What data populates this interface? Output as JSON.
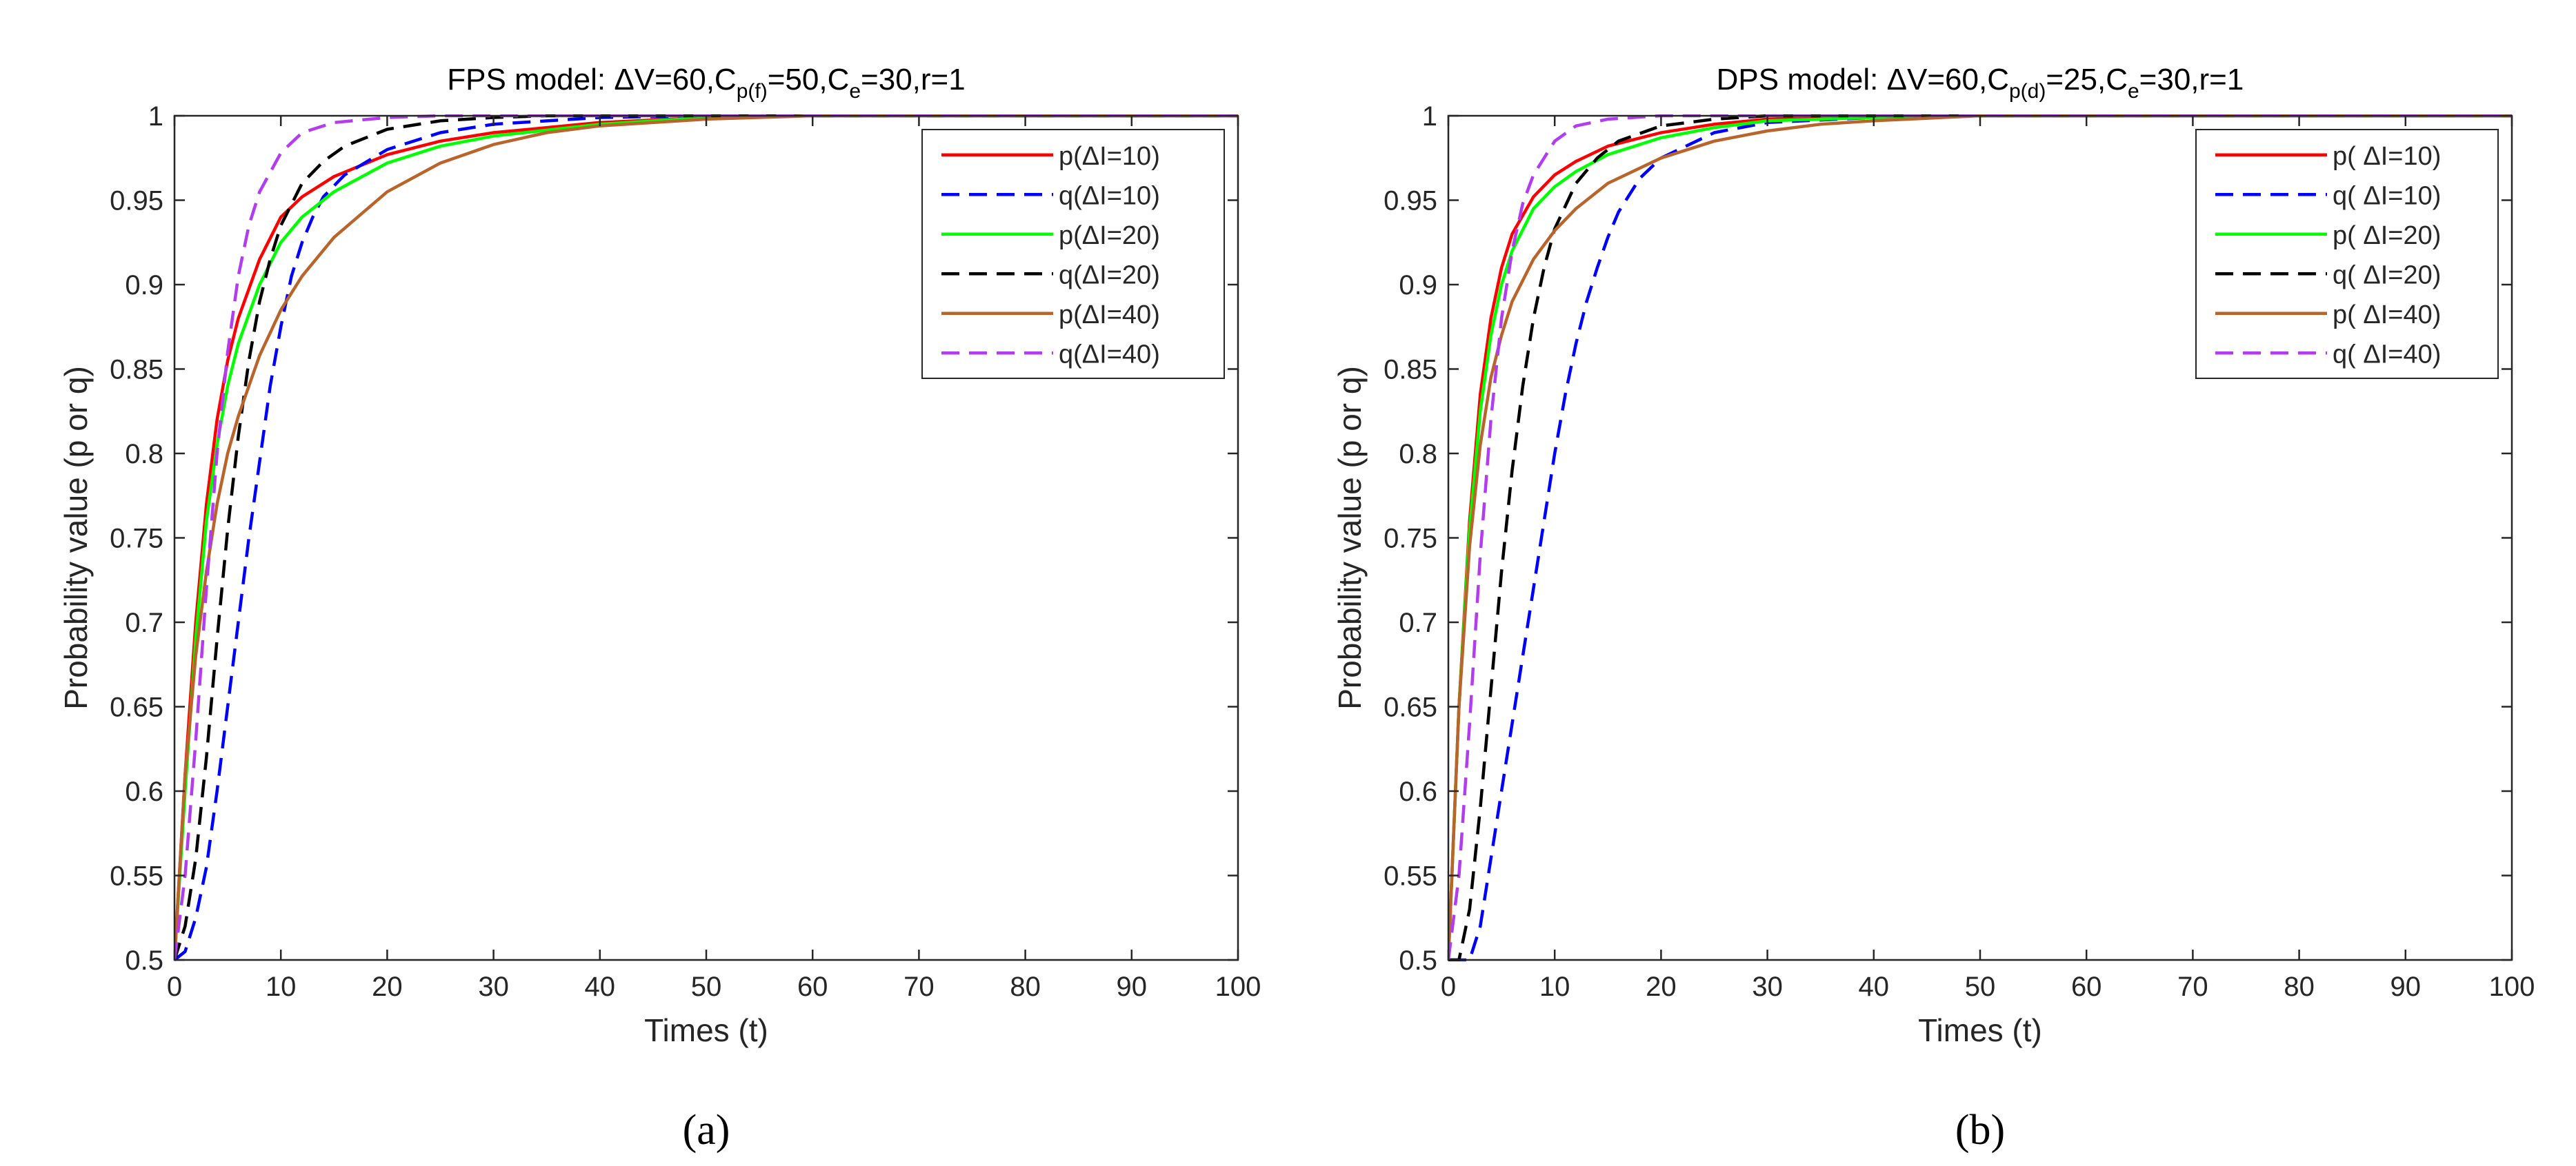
{
  "chart_data": [
    {
      "type": "line",
      "panel_label": "(a)",
      "title_prefix": "FPS model: ΔV=60,C",
      "title_sub1": "p(f)",
      "title_mid": "=50,C",
      "title_sub2": "e",
      "title_suffix": "=30,r=1",
      "xlabel": "Times (t)",
      "ylabel": "Probability value (p or q)",
      "xlim": [
        0,
        100
      ],
      "ylim": [
        0.5,
        1
      ],
      "xticks": [
        "0",
        "10",
        "20",
        "30",
        "40",
        "50",
        "60",
        "70",
        "80",
        "90",
        "100"
      ],
      "yticks": [
        "0.5",
        "0.55",
        "0.6",
        "0.65",
        "0.7",
        "0.75",
        "0.8",
        "0.85",
        "0.9",
        "0.95",
        "1"
      ],
      "legend_position": "top-right",
      "series": [
        {
          "name": "p(ΔI=10)",
          "color": "#ff0000",
          "dash": "solid",
          "x": [
            0,
            1,
            2,
            3,
            4,
            5,
            6,
            8,
            10,
            12,
            15,
            20,
            25,
            30,
            40,
            50,
            60,
            100
          ],
          "y": [
            0.5,
            0.61,
            0.7,
            0.77,
            0.82,
            0.855,
            0.88,
            0.915,
            0.94,
            0.952,
            0.964,
            0.977,
            0.985,
            0.99,
            0.996,
            0.999,
            1.0,
            1.0
          ]
        },
        {
          "name": "q(ΔI=10)",
          "color": "#0000ff",
          "dash": "dashed",
          "x": [
            0,
            1,
            2,
            3,
            4,
            5,
            6,
            7,
            8,
            9,
            10,
            11,
            12,
            13,
            14,
            16,
            20,
            25,
            30,
            40,
            50,
            100
          ],
          "y": [
            0.5,
            0.505,
            0.525,
            0.555,
            0.6,
            0.65,
            0.7,
            0.75,
            0.795,
            0.84,
            0.875,
            0.905,
            0.925,
            0.94,
            0.952,
            0.965,
            0.98,
            0.99,
            0.995,
            0.999,
            1.0,
            1.0
          ]
        },
        {
          "name": "p(ΔI=20)",
          "color": "#00ff00",
          "dash": "solid",
          "x": [
            0,
            1,
            2,
            3,
            4,
            5,
            6,
            8,
            10,
            12,
            15,
            20,
            25,
            30,
            40,
            50,
            60,
            100
          ],
          "y": [
            0.5,
            0.6,
            0.69,
            0.76,
            0.805,
            0.84,
            0.865,
            0.9,
            0.925,
            0.94,
            0.955,
            0.972,
            0.982,
            0.988,
            0.995,
            0.999,
            1.0,
            1.0
          ]
        },
        {
          "name": "q(ΔI=20)",
          "color": "#000000",
          "dash": "dashed",
          "x": [
            0,
            1,
            2,
            3,
            4,
            5,
            6,
            7,
            8,
            9,
            10,
            12,
            14,
            16,
            20,
            25,
            30,
            35,
            100
          ],
          "y": [
            0.5,
            0.52,
            0.56,
            0.62,
            0.69,
            0.755,
            0.81,
            0.855,
            0.89,
            0.915,
            0.935,
            0.96,
            0.973,
            0.982,
            0.992,
            0.997,
            0.999,
            1.0,
            1.0
          ]
        },
        {
          "name": "p(ΔI=40)",
          "color": "#b8642a",
          "dash": "solid",
          "x": [
            0,
            1,
            2,
            3,
            4,
            5,
            6,
            8,
            10,
            12,
            15,
            20,
            25,
            30,
            35,
            40,
            50,
            60,
            100
          ],
          "y": [
            0.5,
            0.61,
            0.68,
            0.73,
            0.77,
            0.8,
            0.822,
            0.858,
            0.885,
            0.905,
            0.928,
            0.955,
            0.972,
            0.983,
            0.99,
            0.994,
            0.998,
            1.0,
            1.0
          ]
        },
        {
          "name": "q(ΔI=40)",
          "color": "#b23cf0",
          "dash": "dashed",
          "x": [
            0,
            1,
            2,
            3,
            4,
            5,
            6,
            7,
            8,
            10,
            12,
            15,
            20,
            25,
            100
          ],
          "y": [
            0.5,
            0.55,
            0.63,
            0.72,
            0.8,
            0.86,
            0.905,
            0.935,
            0.955,
            0.978,
            0.99,
            0.996,
            0.999,
            1.0,
            1.0
          ]
        }
      ]
    },
    {
      "type": "line",
      "panel_label": "(b)",
      "title_prefix": "DPS model: ΔV=60,C",
      "title_sub1": "p(d)",
      "title_mid": "=25,C",
      "title_sub2": "e",
      "title_suffix": "=30,r=1",
      "xlabel": "Times (t)",
      "ylabel": "Probability value (p or q)",
      "xlim": [
        0,
        100
      ],
      "ylim": [
        0.5,
        1
      ],
      "xticks": [
        "0",
        "10",
        "20",
        "30",
        "40",
        "50",
        "60",
        "70",
        "80",
        "90",
        "100"
      ],
      "yticks": [
        "0.5",
        "0.55",
        "0.6",
        "0.65",
        "0.7",
        "0.75",
        "0.8",
        "0.85",
        "0.9",
        "0.95",
        "1"
      ],
      "legend_position": "top-right",
      "series": [
        {
          "name": "p( ΔI=10)",
          "color": "#ff0000",
          "dash": "solid",
          "x": [
            0,
            1,
            2,
            3,
            4,
            5,
            6,
            8,
            10,
            12,
            15,
            20,
            25,
            30,
            40,
            50,
            100
          ],
          "y": [
            0.5,
            0.65,
            0.76,
            0.835,
            0.88,
            0.91,
            0.93,
            0.952,
            0.965,
            0.973,
            0.982,
            0.99,
            0.995,
            0.998,
            1.0,
            1.0,
            1.0
          ]
        },
        {
          "name": "q( ΔI=10)",
          "color": "#0000ff",
          "dash": "dashed",
          "x": [
            0,
            1,
            2,
            3,
            4,
            5,
            6,
            7,
            8,
            9,
            10,
            11,
            12,
            13,
            14,
            15,
            16,
            18,
            20,
            25,
            30,
            40,
            50,
            100
          ],
          "y": [
            0.5,
            0.5,
            0.5,
            0.52,
            0.56,
            0.6,
            0.64,
            0.68,
            0.72,
            0.76,
            0.8,
            0.835,
            0.865,
            0.89,
            0.91,
            0.928,
            0.943,
            0.963,
            0.975,
            0.99,
            0.996,
            0.999,
            1.0,
            1.0
          ]
        },
        {
          "name": "p( ΔI=20)",
          "color": "#00ff00",
          "dash": "solid",
          "x": [
            0,
            1,
            2,
            3,
            4,
            5,
            6,
            8,
            10,
            12,
            15,
            20,
            25,
            30,
            40,
            50,
            100
          ],
          "y": [
            0.5,
            0.65,
            0.755,
            0.825,
            0.87,
            0.9,
            0.92,
            0.945,
            0.958,
            0.967,
            0.977,
            0.987,
            0.993,
            0.997,
            0.999,
            1.0,
            1.0
          ]
        },
        {
          "name": "q( ΔI=20)",
          "color": "#000000",
          "dash": "dashed",
          "x": [
            0,
            1,
            2,
            3,
            4,
            5,
            6,
            7,
            8,
            9,
            10,
            12,
            14,
            16,
            20,
            25,
            30,
            35,
            100
          ],
          "y": [
            0.5,
            0.5,
            0.53,
            0.59,
            0.66,
            0.73,
            0.79,
            0.84,
            0.88,
            0.91,
            0.933,
            0.96,
            0.975,
            0.985,
            0.994,
            0.998,
            1.0,
            1.0,
            1.0
          ]
        },
        {
          "name": "p( ΔI=40)",
          "color": "#b8642a",
          "dash": "solid",
          "x": [
            0,
            1,
            2,
            3,
            4,
            5,
            6,
            8,
            10,
            12,
            15,
            20,
            25,
            30,
            35,
            40,
            50,
            100
          ],
          "y": [
            0.5,
            0.65,
            0.745,
            0.805,
            0.845,
            0.87,
            0.89,
            0.915,
            0.932,
            0.945,
            0.96,
            0.975,
            0.985,
            0.991,
            0.995,
            0.997,
            1.0,
            1.0
          ]
        },
        {
          "name": "q( ΔI=40)",
          "color": "#b23cf0",
          "dash": "dashed",
          "x": [
            0,
            1,
            2,
            3,
            4,
            5,
            6,
            7,
            8,
            10,
            12,
            15,
            20,
            100
          ],
          "y": [
            0.5,
            0.55,
            0.64,
            0.74,
            0.82,
            0.88,
            0.92,
            0.948,
            0.965,
            0.985,
            0.994,
            0.998,
            1.0,
            1.0
          ]
        }
      ]
    }
  ]
}
